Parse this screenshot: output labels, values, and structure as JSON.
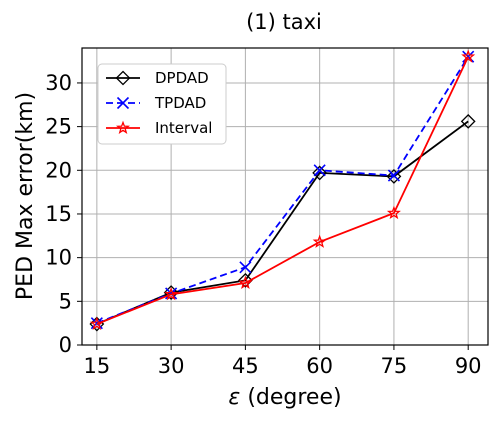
{
  "chart_data": {
    "type": "line",
    "title": "(1) taxi",
    "xlabel_symbol": "ε",
    "xlabel_unit": "(degree)",
    "ylabel": "PED Max error(km)",
    "x": [
      15,
      30,
      45,
      60,
      75,
      90
    ],
    "xlim": [
      12,
      94
    ],
    "ylim": [
      0,
      34
    ],
    "yticks": [
      0,
      5,
      10,
      15,
      20,
      25,
      30
    ],
    "grid": true,
    "legend_position": "upper-left",
    "series": [
      {
        "name": "DPDAD",
        "color": "#000000",
        "dash": "solid",
        "marker": "diamond",
        "values": [
          2.4,
          6.0,
          7.4,
          19.7,
          19.3,
          25.6
        ]
      },
      {
        "name": "TPDAD",
        "color": "#0000ff",
        "dash": "dashed",
        "marker": "x",
        "values": [
          2.5,
          5.9,
          8.9,
          20.0,
          19.4,
          33.0
        ]
      },
      {
        "name": "Interval",
        "color": "#ff0000",
        "dash": "solid",
        "marker": "star",
        "values": [
          2.4,
          5.8,
          7.1,
          11.8,
          15.1,
          33.0
        ]
      }
    ]
  }
}
